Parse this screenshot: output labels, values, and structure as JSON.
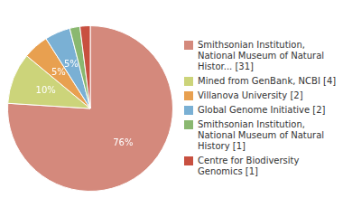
{
  "chart_data": {
    "type": "pie",
    "categories": [
      "Smithsonian Institution,\nNational Museum of Natural\nHistor... [31]",
      "Mined from GenBank, NCBI [4]",
      "Villanova University [2]",
      "Global Genome Initiative [2]",
      "Smithsonian Institution,\nNational Museum of Natural\nHistory [1]",
      "Centre for Biodiversity\nGenomics [1]"
    ],
    "values": [
      76,
      10,
      5,
      5,
      2,
      2
    ],
    "value_labels": [
      "76%",
      "10%",
      "5%",
      "5%",
      null,
      null
    ],
    "colors": [
      "#d4897c",
      "#ccd47a",
      "#e8a050",
      "#7ab0d4",
      "#8ab870",
      "#c85040"
    ],
    "legend": "right",
    "data_labels": true
  }
}
